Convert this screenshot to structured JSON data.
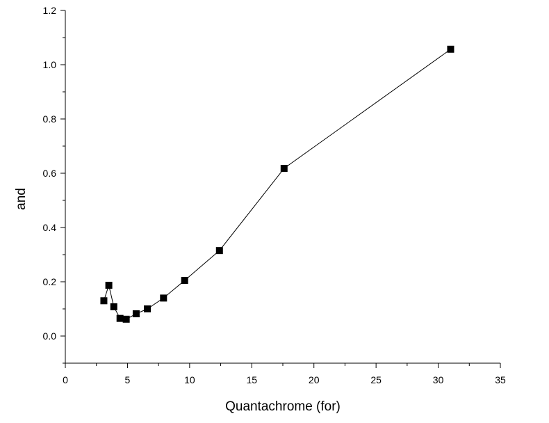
{
  "chart_data": {
    "type": "line",
    "title": "",
    "xlabel": "Quantachrome (for)",
    "ylabel": "and",
    "xlim": [
      0,
      35
    ],
    "ylim": [
      -0.1,
      1.2
    ],
    "xticks": [
      0,
      5,
      10,
      15,
      20,
      25,
      30,
      35
    ],
    "yticks": [
      0.0,
      0.2,
      0.4,
      0.6,
      0.8,
      1.0,
      1.2
    ],
    "xtick_labels": [
      "0",
      "5",
      "10",
      "15",
      "20",
      "25",
      "30",
      "35"
    ],
    "ytick_labels": [
      "0.0",
      "0.2",
      "0.4",
      "0.6",
      "0.8",
      "1.0",
      "1.2"
    ],
    "grid": false,
    "marker": "square",
    "series": [
      {
        "x": [
          3.1,
          3.5,
          3.9,
          4.4,
          4.9,
          5.7,
          6.6,
          7.9,
          9.6,
          12.4,
          17.6,
          31.0
        ],
        "y": [
          0.13,
          0.187,
          0.108,
          0.065,
          0.062,
          0.082,
          0.1,
          0.14,
          0.205,
          0.315,
          0.618,
          1.057
        ]
      }
    ],
    "colors": {
      "line": "#000000",
      "marker": "#000000",
      "axis": "#000000"
    }
  }
}
